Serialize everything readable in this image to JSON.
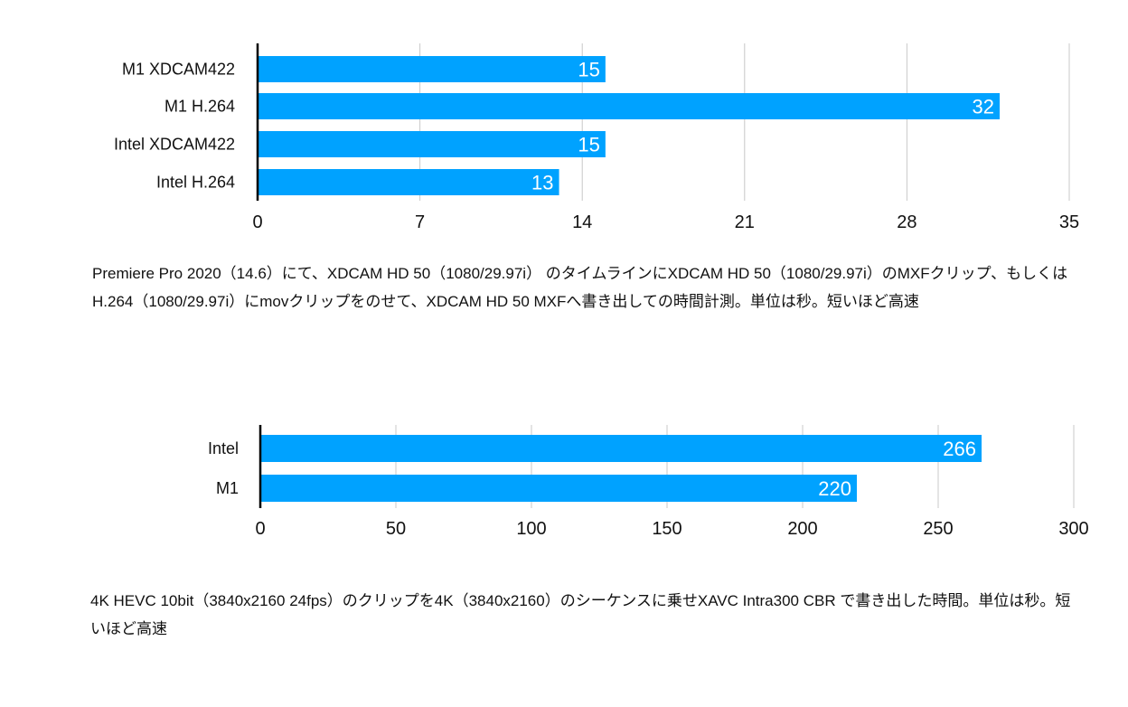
{
  "chart_data": [
    {
      "type": "bar",
      "orientation": "horizontal",
      "categories": [
        "M1 XDCAM422",
        "M1 H.264",
        "Intel XDCAM422",
        "Intel H.264"
      ],
      "values": [
        15,
        32,
        15,
        13
      ],
      "xlim": [
        0,
        35
      ],
      "xticks": [
        0,
        7,
        14,
        21,
        28,
        35
      ],
      "grid": true,
      "bar_color": "#00A2FF",
      "data_labels": true,
      "caption": "Premiere Pro 2020（14.6）にて、XDCAM HD 50（1080/29.97i） のタイムラインにXDCAM HD 50（1080/29.97i）のMXFクリップ、もしくはH.264（1080/29.97i）にmovクリップをのせて、XDCAM HD 50 MXFへ書き出しての時間計測。単位は秒。短いほど高速"
    },
    {
      "type": "bar",
      "orientation": "horizontal",
      "categories": [
        "Intel",
        "M1"
      ],
      "values": [
        266,
        220
      ],
      "xlim": [
        0,
        300
      ],
      "xticks": [
        0,
        50,
        100,
        150,
        200,
        250,
        300
      ],
      "grid": true,
      "bar_color": "#00A2FF",
      "data_labels": true,
      "caption": "4K HEVC 10bit（3840x2160 24fps）のクリップを4K（3840x2160）のシーケンスに乗せXAVC Intra300 CBR で書き出した時間。単位は秒。短いほど高速"
    }
  ]
}
